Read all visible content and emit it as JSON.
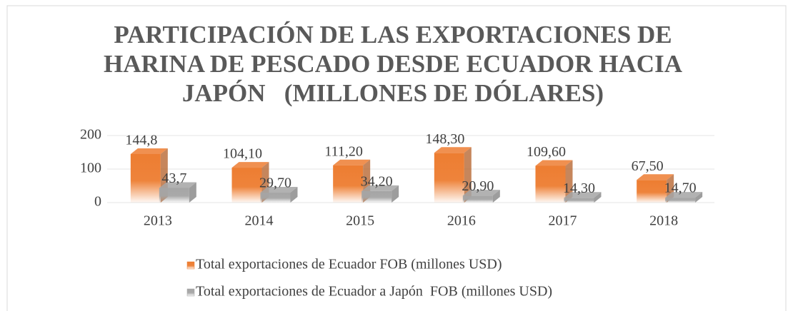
{
  "chart_data": {
    "type": "bar3d",
    "title": "PARTICIPACIÓN DE LAS EXPORTACIONES DE HARINA DE PESCADO DESDE ECUADOR HACIA JAPÓN   (MILLONES DE DÓLARES)",
    "categories": [
      "2013",
      "2014",
      "2015",
      "2016",
      "2017",
      "2018"
    ],
    "series": [
      {
        "name": "Total exportaciones de Ecuador FOB (millones USD)",
        "color": "#ed7d31",
        "values": [
          144.8,
          104.1,
          111.2,
          148.3,
          109.6,
          67.5
        ],
        "value_labels": [
          "144,8",
          "104,10",
          "111,20",
          "148,30",
          "109,60",
          "67,50"
        ]
      },
      {
        "name": "Total exportaciones de Ecuador a Japón  FOB (millones USD)",
        "color": "#a5a5a5",
        "values": [
          43.7,
          29.7,
          34.2,
          20.9,
          14.3,
          14.7
        ],
        "value_labels": [
          "43,7",
          "29,70",
          "34,20",
          "20,90",
          "14,30",
          "14,70"
        ]
      }
    ],
    "ylim": [
      0,
      200
    ],
    "yticks": [
      0,
      100,
      200
    ],
    "grid": true,
    "legend": "bottom"
  }
}
